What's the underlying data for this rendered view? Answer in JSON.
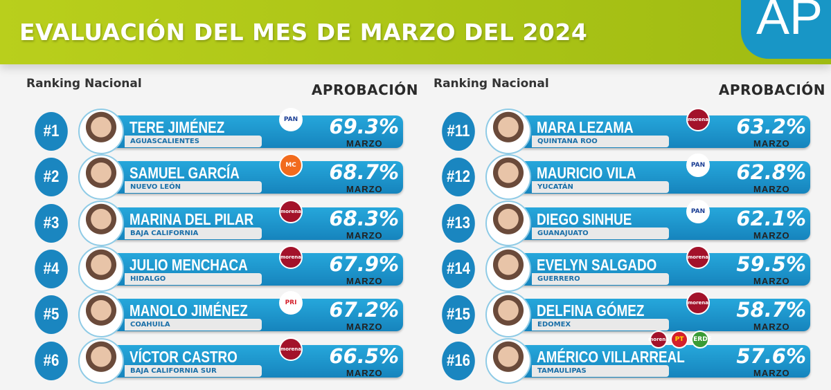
{
  "header": {
    "title": "EVALUACIÓN DEL MES DE MARZO DEL 2024",
    "corner_text": "AP"
  },
  "labels": {
    "ranking": "Ranking Nacional",
    "approval": "APROBACIÓN",
    "month": "MARZO"
  },
  "colors": {
    "green": "#a8c317",
    "blue": "#1a86c0",
    "morena": "#a3122a",
    "pan": "#1c3f95",
    "mc": "#f26b1d",
    "pri": "#d4202b"
  },
  "left": [
    {
      "rank": "#1",
      "name": "TERE JIMÉNEZ",
      "state": "AGUASCALIENTES",
      "party": [
        "PAN"
      ],
      "pct": "69.3%"
    },
    {
      "rank": "#2",
      "name": "SAMUEL GARCÍA",
      "state": "NUEVO LEÓN",
      "party": [
        "MC"
      ],
      "pct": "68.7%"
    },
    {
      "rank": "#3",
      "name": "MARINA DEL PILAR",
      "state": "BAJA CALIFORNIA",
      "party": [
        "morena"
      ],
      "pct": "68.3%"
    },
    {
      "rank": "#4",
      "name": "JULIO MENCHACA",
      "state": "HIDALGO",
      "party": [
        "morena"
      ],
      "pct": "67.9%"
    },
    {
      "rank": "#5",
      "name": "MANOLO JIMÉNEZ",
      "state": "COAHUILA",
      "party": [
        "PRI"
      ],
      "pct": "67.2%"
    },
    {
      "rank": "#6",
      "name": "VÍCTOR CASTRO",
      "state": "BAJA CALIFORNIA SUR",
      "party": [
        "morena"
      ],
      "pct": "66.5%"
    }
  ],
  "right": [
    {
      "rank": "#11",
      "name": "MARA LEZAMA",
      "state": "QUINTANA ROO",
      "party": [
        "morena"
      ],
      "pct": "63.2%"
    },
    {
      "rank": "#12",
      "name": "MAURICIO VILA",
      "state": "YUCATÁN",
      "party": [
        "PAN"
      ],
      "pct": "62.8%"
    },
    {
      "rank": "#13",
      "name": "DIEGO SINHUE",
      "state": "GUANAJUATO",
      "party": [
        "PAN"
      ],
      "pct": "62.1%"
    },
    {
      "rank": "#14",
      "name": "EVELYN SALGADO",
      "state": "GUERRERO",
      "party": [
        "morena"
      ],
      "pct": "59.5%"
    },
    {
      "rank": "#15",
      "name": "DELFINA GÓMEZ",
      "state": "EDOMEX",
      "party": [
        "morena"
      ],
      "pct": "58.7%"
    },
    {
      "rank": "#16",
      "name": "AMÉRICO VILLARREAL",
      "state": "TAMAULIPAS",
      "party": [
        "morena",
        "PT",
        "VERDE"
      ],
      "pct": "57.6%"
    }
  ]
}
